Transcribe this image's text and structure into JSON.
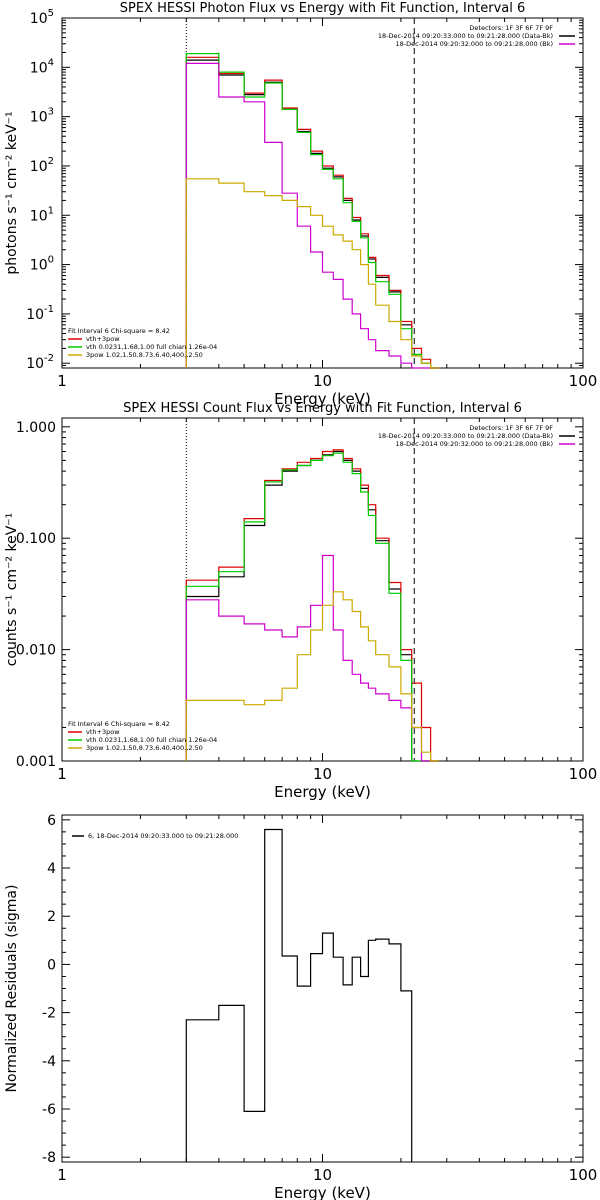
{
  "chart_data": [
    {
      "type": "line",
      "title": "SPEX HESSI Photon Flux vs Energy with Fit Function, Interval 6",
      "xlabel": "Energy (keV)",
      "ylabel": "photons s⁻¹ cm⁻² keV⁻¹",
      "xscale": "log",
      "yscale": "log",
      "xlim": [
        1,
        100
      ],
      "ylim": [
        0.008,
        100000
      ],
      "x_ticks": [
        {
          "v": 1,
          "label": "1"
        },
        {
          "v": 10,
          "label": "10"
        },
        {
          "v": 100,
          "label": "100"
        }
      ],
      "y_ticks": [
        {
          "v": 0.01,
          "base": "10",
          "exp": "-2"
        },
        {
          "v": 0.1,
          "base": "10",
          "exp": "-1"
        },
        {
          "v": 1,
          "base": "10",
          "exp": "0"
        },
        {
          "v": 10,
          "base": "10",
          "exp": "1"
        },
        {
          "v": 100,
          "base": "10",
          "exp": "2"
        },
        {
          "v": 1000,
          "base": "10",
          "exp": "3"
        },
        {
          "v": 10000,
          "base": "10",
          "exp": "4"
        },
        {
          "v": 100000,
          "base": "10",
          "exp": "5"
        }
      ],
      "vlines": [
        {
          "x": 3.0,
          "style": "dotted",
          "color": "#000000"
        },
        {
          "x": 22.5,
          "style": "dashed",
          "color": "#000000"
        }
      ],
      "edges": [
        3.0,
        4.0,
        5.0,
        6.0,
        7.0,
        8.0,
        9.0,
        10.0,
        11.0,
        12.0,
        13.0,
        14.0,
        15.0,
        16.0,
        18.0,
        20.0,
        22.0,
        24.0,
        26.0,
        28.0
      ],
      "series": [
        {
          "name": "",
          "color": "#000000",
          "values": [
            14000,
            7000,
            2800,
            5000,
            1400,
            500,
            180,
            90,
            60,
            20,
            8,
            3.8,
            1.3,
            0.55,
            0.28,
            0.06,
            0.015,
            0.01,
            0.008
          ]
        },
        {
          "name": "vth+3pow",
          "color": "#dd0000",
          "values": [
            16000,
            7500,
            3000,
            5500,
            1500,
            550,
            200,
            100,
            65,
            22,
            9,
            4.2,
            1.4,
            0.6,
            0.3,
            0.07,
            0.02,
            0.012,
            0.008
          ]
        },
        {
          "name": "vth 0.0231,1.68,1.00 full chian 1.26e-04",
          "color": "#00cc00",
          "values": [
            19000,
            8000,
            2500,
            4800,
            1400,
            480,
            170,
            85,
            55,
            18,
            7.5,
            3.5,
            1.1,
            0.45,
            0.25,
            0.05,
            0.015,
            0.01,
            0.008
          ]
        },
        {
          "name": "",
          "color": "#cc00cc",
          "values": [
            12000,
            2500,
            2000,
            300,
            28,
            6,
            1.8,
            0.7,
            0.5,
            0.2,
            0.1,
            0.05,
            0.03,
            0.018,
            0.014,
            0.01,
            0.008,
            0.008,
            0.008
          ]
        },
        {
          "name": "3pow 1.02,1.50,8.73,6.40,400.,2.50",
          "color": "#ccaa00",
          "values": [
            55,
            45,
            30,
            25,
            20,
            15,
            10,
            6,
            4,
            3,
            2,
            1,
            0.4,
            0.15,
            0.07,
            0.03,
            0.014,
            0.01,
            0.008
          ]
        }
      ],
      "legend_top_right": [
        {
          "text": "Detectors: 1F 3F 6F 7F 9F",
          "color": ""
        },
        {
          "text": "18-Dec-2014 09:20:33.000 to 09:21:28.000 (Data-Bk)",
          "color": "#000000"
        },
        {
          "text": "18-Dec-2014 09:20:32.000 to 09:21:28.000 (Bk)",
          "color": "#cc00cc"
        }
      ],
      "legend_bottom_left": [
        {
          "text": "Fit Interval  6    Chi-square = 8.42",
          "color": ""
        },
        {
          "text": "vth+3pow",
          "color": "#dd0000"
        },
        {
          "text": "vth 0.0231,1.68,1.00  full chian 1.26e-04",
          "color": "#00cc00"
        },
        {
          "text": "3pow  1.02,1.50,8.73,6.40,400.,2.50",
          "color": "#ccaa00"
        }
      ]
    },
    {
      "type": "line",
      "title": "SPEX HESSI Count Flux vs Energy with Fit Function, Interval 6",
      "xlabel": "Energy (keV)",
      "ylabel": "counts s⁻¹ cm⁻² keV⁻¹",
      "xscale": "log",
      "yscale": "log",
      "xlim": [
        1,
        100
      ],
      "ylim": [
        0.001,
        1.2
      ],
      "x_ticks": [
        {
          "v": 1,
          "label": "1"
        },
        {
          "v": 10,
          "label": "10"
        },
        {
          "v": 100,
          "label": "100"
        }
      ],
      "y_ticks": [
        {
          "v": 0.001,
          "label": "0.001"
        },
        {
          "v": 0.01,
          "label": "0.010"
        },
        {
          "v": 0.1,
          "label": "0.100"
        },
        {
          "v": 1,
          "label": "1.000"
        }
      ],
      "vlines": [
        {
          "x": 3.0,
          "style": "dotted",
          "color": "#000000"
        },
        {
          "x": 22.5,
          "style": "dashed",
          "color": "#000000"
        }
      ],
      "edges": [
        3.0,
        4.0,
        5.0,
        6.0,
        7.0,
        8.0,
        9.0,
        10.0,
        11.0,
        12.0,
        13.0,
        14.0,
        15.0,
        16.0,
        18.0,
        20.0,
        22.0,
        24.0,
        26.0,
        28.0
      ],
      "series": [
        {
          "name": "",
          "color": "#000000",
          "values": [
            0.03,
            0.045,
            0.13,
            0.3,
            0.4,
            0.45,
            0.5,
            0.56,
            0.6,
            0.5,
            0.4,
            0.28,
            0.18,
            0.095,
            0.035,
            0.009,
            0.0009,
            0.0009,
            0.0009
          ]
        },
        {
          "name": "vth+3pow",
          "color": "#dd0000",
          "values": [
            0.042,
            0.055,
            0.15,
            0.33,
            0.42,
            0.48,
            0.52,
            0.6,
            0.62,
            0.52,
            0.42,
            0.3,
            0.2,
            0.1,
            0.04,
            0.01,
            0.005,
            0.002,
            0.0009
          ]
        },
        {
          "name": "vth 0.0231,1.68,1.00 full chian 1.26e-04",
          "color": "#00cc00",
          "values": [
            0.037,
            0.05,
            0.14,
            0.32,
            0.41,
            0.45,
            0.5,
            0.55,
            0.58,
            0.48,
            0.38,
            0.26,
            0.16,
            0.09,
            0.032,
            0.008,
            0.0009,
            0.0009,
            0.0009
          ]
        },
        {
          "name": "",
          "color": "#cc00cc",
          "values": [
            0.028,
            0.02,
            0.017,
            0.015,
            0.013,
            0.016,
            0.025,
            0.07,
            0.015,
            0.008,
            0.006,
            0.005,
            0.0045,
            0.004,
            0.0035,
            0.003,
            0.002,
            0.0009,
            0.0009
          ]
        },
        {
          "name": "3pow 1.02,1.50,8.73,6.40,400.,2.50",
          "color": "#ccaa00",
          "values": [
            0.0035,
            0.0035,
            0.0032,
            0.0035,
            0.0045,
            0.009,
            0.015,
            0.025,
            0.033,
            0.028,
            0.022,
            0.016,
            0.012,
            0.009,
            0.007,
            0.004,
            0.002,
            0.0012,
            0.0009
          ]
        }
      ],
      "legend_top_right": [
        {
          "text": "Detectors: 1F 3F 6F 7F 9F",
          "color": ""
        },
        {
          "text": "18-Dec-2014 09:20:33.000 to 09:21:28.000 (Data-Bk)",
          "color": "#000000"
        },
        {
          "text": "18-Dec-2014 09:20:32.000 to 09:21:28.000 (Bk)",
          "color": "#cc00cc"
        }
      ],
      "legend_bottom_left": [
        {
          "text": "Fit Interval  6    Chi-square = 8.42",
          "color": ""
        },
        {
          "text": "vth+3pow",
          "color": "#dd0000"
        },
        {
          "text": "vth 0.0231,1.68,1.00  full chian 1.26e-04",
          "color": "#00cc00"
        },
        {
          "text": "3pow  1.02,1.50,8.73,6.40,400.,2.50",
          "color": "#ccaa00"
        }
      ]
    },
    {
      "type": "line",
      "title": "",
      "xlabel": "Energy (keV)",
      "ylabel": "Normalized Residuals (sigma)",
      "xscale": "log",
      "yscale": "linear",
      "xlim": [
        1,
        100
      ],
      "ylim": [
        -8.2,
        6.2
      ],
      "x_ticks": [
        {
          "v": 1,
          "label": "1"
        },
        {
          "v": 10,
          "label": "10"
        },
        {
          "v": 100,
          "label": "100"
        }
      ],
      "y_ticks": [
        {
          "v": -8,
          "label": "-8"
        },
        {
          "v": -6,
          "label": "-6"
        },
        {
          "v": -4,
          "label": "-4"
        },
        {
          "v": -2,
          "label": "-2"
        },
        {
          "v": 0,
          "label": "0"
        },
        {
          "v": 2,
          "label": "2"
        },
        {
          "v": 4,
          "label": "4"
        },
        {
          "v": 6,
          "label": "6"
        }
      ],
      "vlines": [],
      "edges": [
        3.0,
        4.0,
        5.0,
        6.0,
        7.0,
        8.0,
        9.0,
        10.0,
        11.0,
        12.0,
        13.0,
        14.0,
        15.0,
        16.0,
        18.0,
        20.0,
        22.0
      ],
      "series": [
        {
          "name": "6, 18-Dec-2014 09:20:33.000 to 09:21:28.000",
          "color": "#000000",
          "values": [
            -2.3,
            -1.7,
            -6.1,
            5.6,
            0.35,
            -0.9,
            0.45,
            1.3,
            0.3,
            -0.85,
            0.3,
            -0.5,
            1.0,
            1.05,
            0.85,
            -1.1
          ]
        }
      ],
      "legend_top_right": [],
      "legend_bottom_left": [],
      "legend_top_left": [
        {
          "text": "6, 18-Dec-2014 09:20:33.000 to 09:21:28.000",
          "color": "#000000"
        }
      ]
    }
  ]
}
